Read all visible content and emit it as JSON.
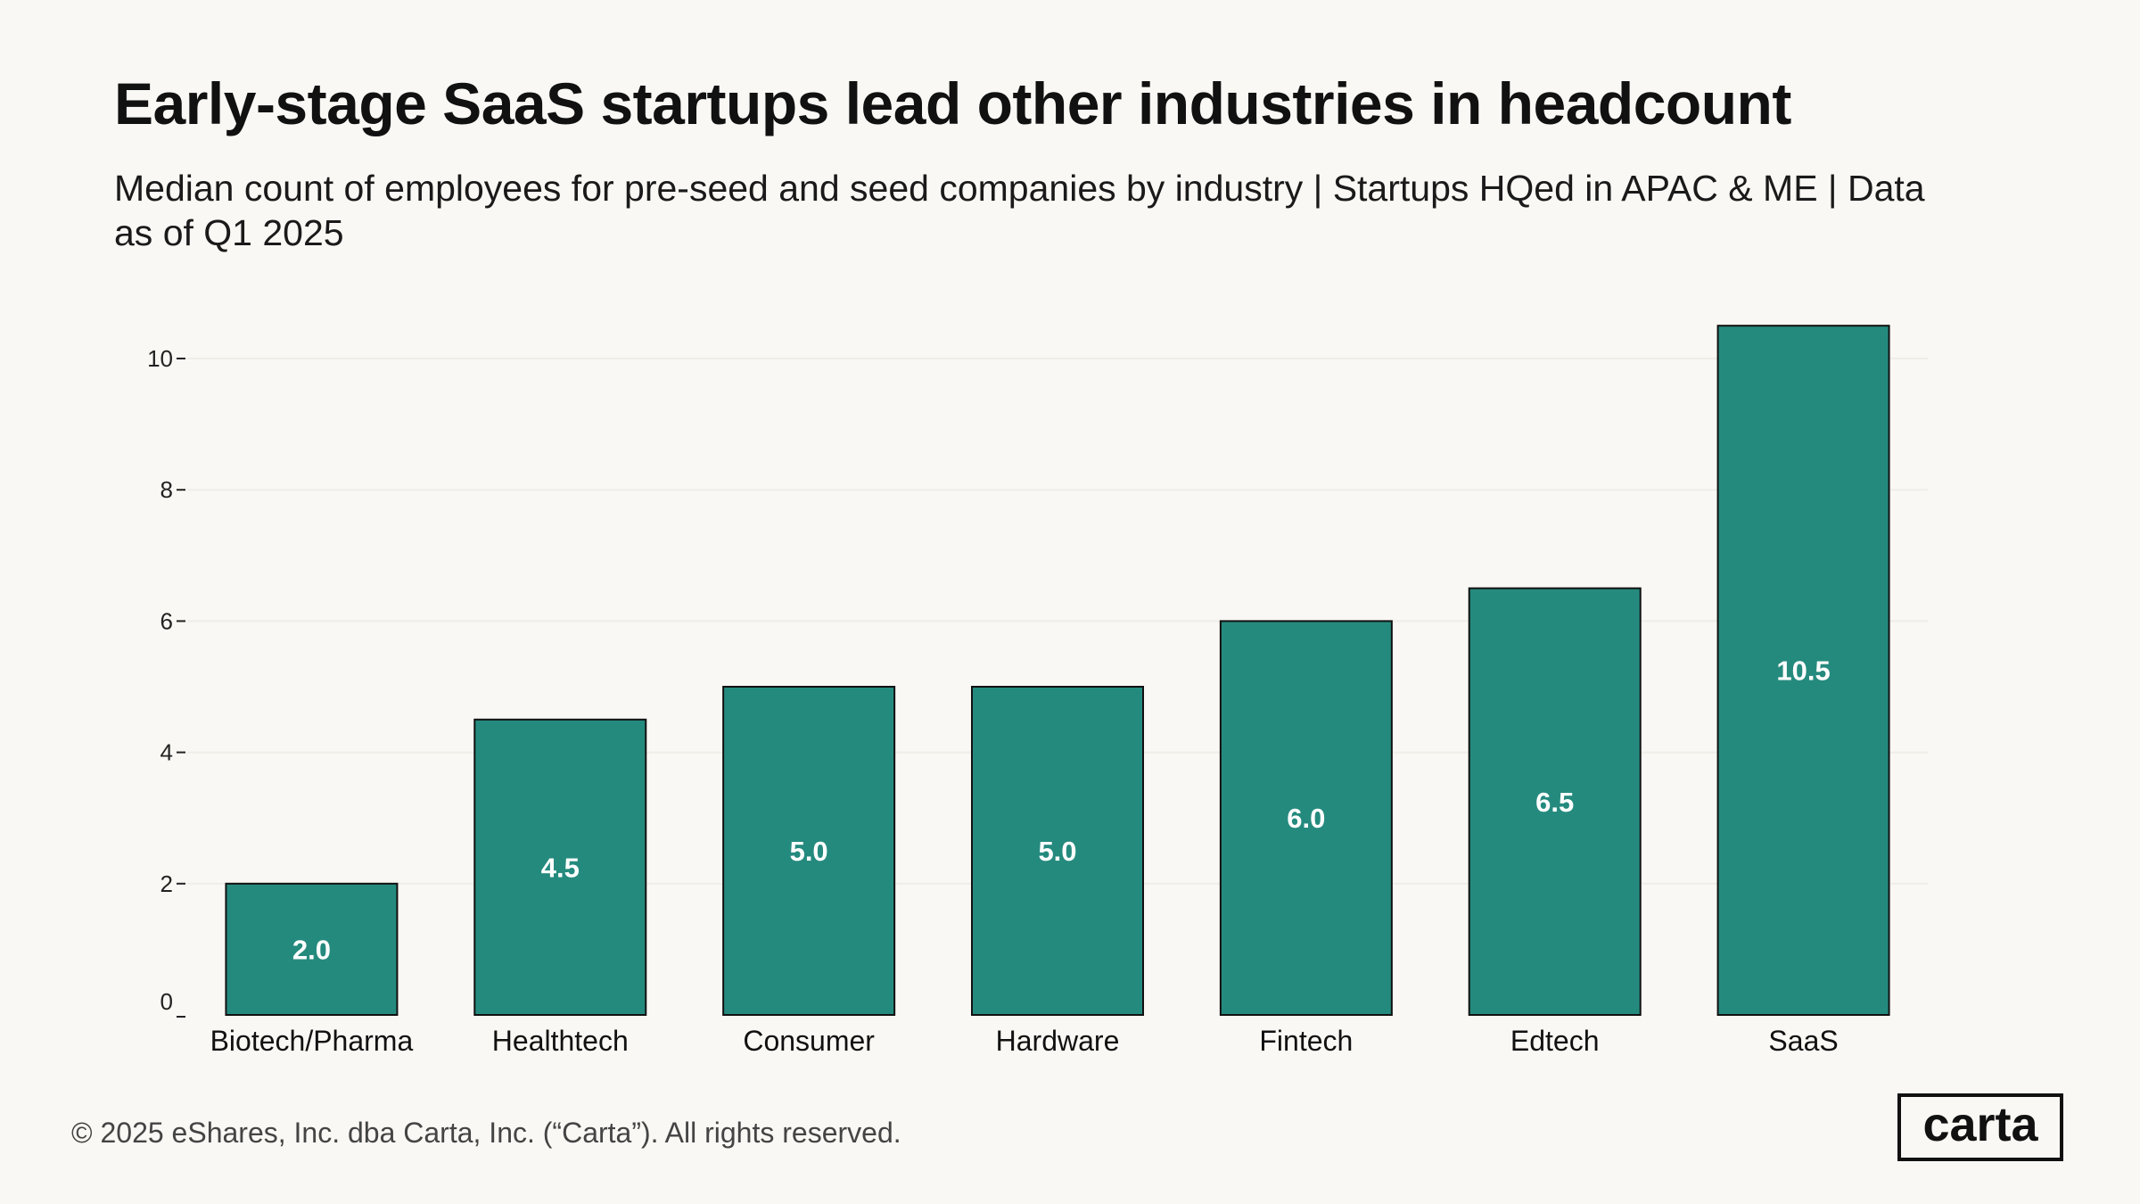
{
  "title": "Early-stage SaaS startups lead other industries in headcount",
  "subtitle": "Median count of employees for pre-seed and seed companies by industry | Startups HQed in APAC & ME | Data as of Q1 2025",
  "footer": "© 2025 eShares, Inc. dba Carta, Inc. (“Carta”). All rights reserved.",
  "logo_text": "carta",
  "colors": {
    "bar": "#258a7e",
    "bar_stroke": "#111111",
    "grid": "#efede8",
    "background": "#faf8f4"
  },
  "chart_data": {
    "type": "bar",
    "title": "Early-stage SaaS startups lead other industries in headcount",
    "xlabel": "",
    "ylabel": "",
    "categories": [
      "Biotech/Pharma",
      "Healthtech",
      "Consumer",
      "Hardware",
      "Fintech",
      "Edtech",
      "SaaS"
    ],
    "values": [
      2.0,
      4.5,
      5.0,
      5.0,
      6.0,
      6.5,
      10.5
    ],
    "value_labels": [
      "2.0",
      "4.5",
      "5.0",
      "5.0",
      "6.0",
      "6.5",
      "10.5"
    ],
    "yticks": [
      0,
      2,
      4,
      6,
      8,
      10
    ],
    "ytick_labels": [
      "0",
      "2",
      "4",
      "6",
      "8",
      "10"
    ],
    "ylim": [
      0,
      11
    ],
    "grid": true,
    "legend": "none"
  }
}
